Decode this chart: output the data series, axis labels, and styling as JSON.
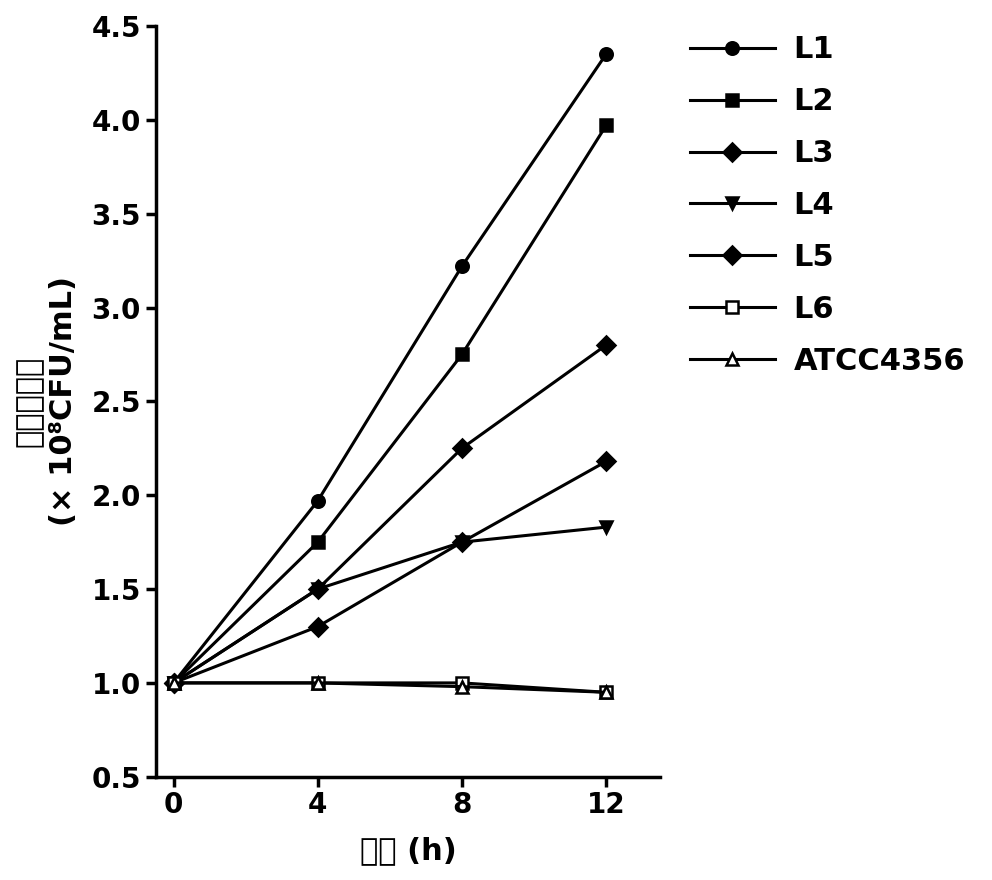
{
  "x": [
    0,
    4,
    8,
    12
  ],
  "series": [
    {
      "label": "L1",
      "y": [
        1.0,
        1.97,
        3.22,
        4.35
      ],
      "marker": "o",
      "mfc": "black",
      "mec": "black"
    },
    {
      "label": "L2",
      "y": [
        1.0,
        1.75,
        2.75,
        3.97
      ],
      "marker": "s",
      "mfc": "black",
      "mec": "black"
    },
    {
      "label": "L3",
      "y": [
        1.0,
        1.5,
        2.25,
        2.8
      ],
      "marker": "D",
      "mfc": "black",
      "mec": "black"
    },
    {
      "label": "L4",
      "y": [
        1.0,
        1.5,
        1.75,
        1.83
      ],
      "marker": "v",
      "mfc": "black",
      "mec": "black"
    },
    {
      "label": "L5",
      "y": [
        1.0,
        1.3,
        1.75,
        2.18
      ],
      "marker": "D",
      "mfc": "black",
      "mec": "black"
    },
    {
      "label": "L6",
      "y": [
        1.0,
        1.0,
        1.0,
        0.95
      ],
      "marker": "s",
      "mfc": "white",
      "mec": "black"
    },
    {
      "label": "ATCC4356",
      "y": [
        1.0,
        1.0,
        0.98,
        0.95
      ],
      "marker": "^",
      "mfc": "white",
      "mec": "black"
    }
  ],
  "xlabel_cn": "时间 (h)",
  "ylabel_line1": "乳杆菌菌量",
  "ylabel_line2": "(× 10⁸CFU/mL)",
  "xlim": [
    -0.5,
    13.5
  ],
  "ylim": [
    0.5,
    4.5
  ],
  "xticks": [
    0,
    4,
    8,
    12
  ],
  "yticks": [
    0.5,
    1.0,
    1.5,
    2.0,
    2.5,
    3.0,
    3.5,
    4.0,
    4.5
  ],
  "linewidth": 2.2,
  "markersize": 9,
  "background_color": "#ffffff",
  "legend_fontsize": 22,
  "axis_fontsize": 22,
  "tick_fontsize": 20
}
